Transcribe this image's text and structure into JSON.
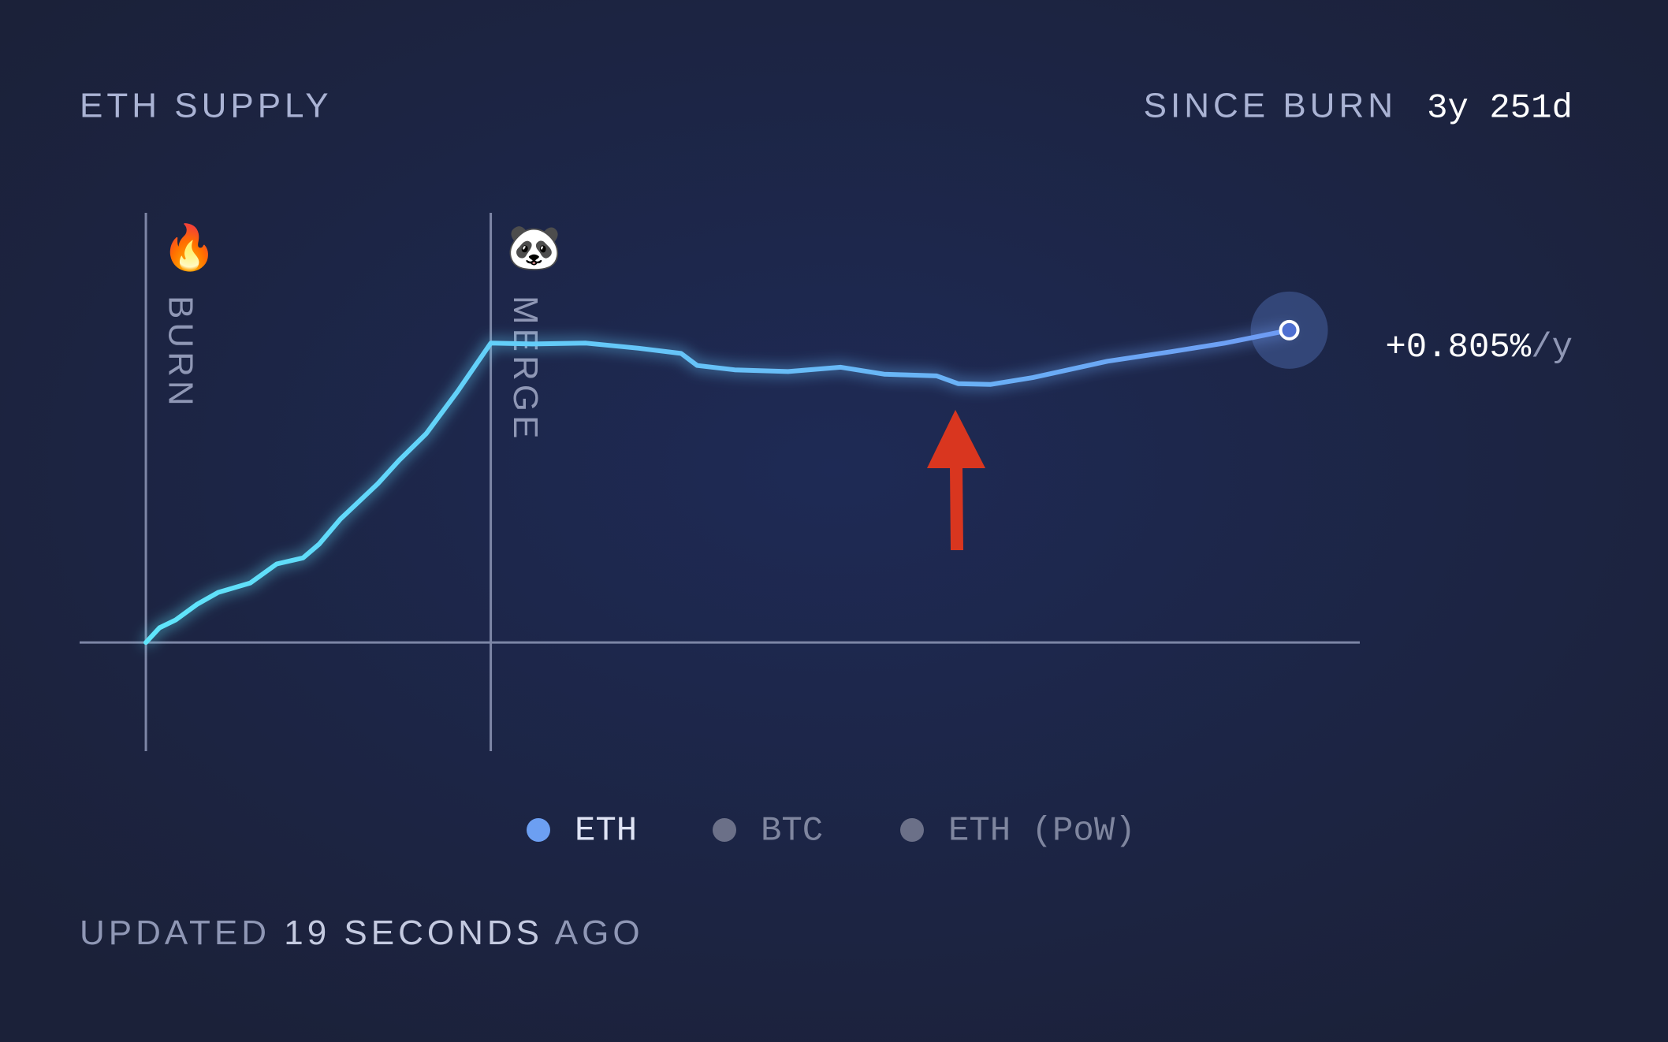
{
  "chart_data": {
    "type": "line",
    "title": "ETH SUPPLY",
    "since_label": "SINCE BURN",
    "since_value": "3y 251d",
    "x": [
      0,
      16,
      35,
      60,
      85,
      123,
      154,
      185,
      204,
      229,
      273,
      298,
      330,
      367,
      406,
      455,
      518,
      580,
      630,
      649,
      693,
      756,
      818,
      869,
      931,
      956,
      994,
      1044,
      1132,
      1207,
      1270,
      1346
    ],
    "series": [
      {
        "name": "ETH",
        "color": "#5fe6fb",
        "color_end": "#6e9cf4",
        "values": [
          0,
          0.17,
          0.26,
          0.44,
          0.58,
          0.69,
          0.91,
          0.98,
          1.14,
          1.43,
          1.84,
          2.11,
          2.42,
          2.91,
          3.47,
          3.46,
          3.47,
          3.41,
          3.35,
          3.21,
          3.16,
          3.14,
          3.19,
          3.11,
          3.09,
          3.0,
          2.99,
          3.07,
          3.26,
          3.37,
          3.47,
          3.62
        ]
      }
    ],
    "xlim": [
      -78,
      1429
    ],
    "ylim": [
      -1.26,
      4.98
    ],
    "markers": [
      {
        "label": "BURN",
        "icon": "🔥",
        "x": 0
      },
      {
        "label": "MERGE",
        "icon": "🐼",
        "x": 406
      }
    ],
    "rate_label": "+0.805%",
    "rate_unit": "/y",
    "legend": [
      {
        "name": "ETH",
        "color": "#6c9ff2",
        "active": true
      },
      {
        "name": "BTC",
        "color": "#6b7088",
        "active": false
      },
      {
        "name": "ETH (PoW)",
        "color": "#6b7088",
        "active": false
      }
    ],
    "footer": [
      "UPDATED",
      "19",
      "SECONDS",
      "AGO"
    ]
  }
}
